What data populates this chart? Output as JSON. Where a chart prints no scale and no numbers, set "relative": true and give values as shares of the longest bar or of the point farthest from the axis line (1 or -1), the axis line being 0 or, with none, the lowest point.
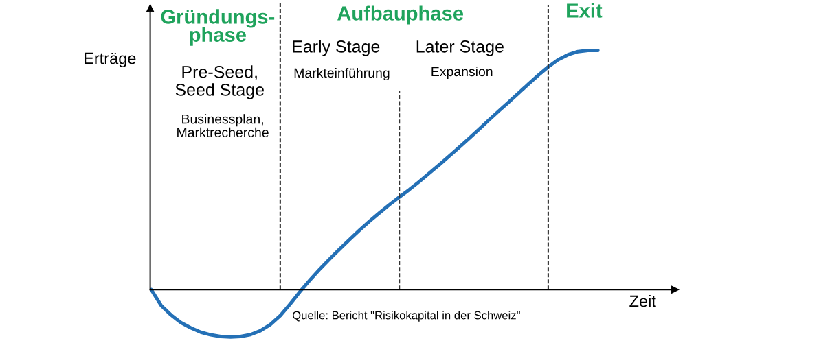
{
  "chart_data": {
    "type": "line",
    "relative": true,
    "xlabel": "Zeit",
    "ylabel": "Erträge",
    "annotations": [
      "Gründungs-\nphase",
      "Aufbauphase",
      "Exit",
      "Early Stage",
      "Later Stage",
      "Pre-Seed,\nSeed Stage",
      "Markteinführung",
      "Expansion",
      "Businessplan,\nMarktrecherche",
      "Quelle: Bericht \"Risikokapital in der Schweiz\""
    ],
    "categories": [
      null,
      null,
      null,
      null,
      null,
      null,
      null,
      null,
      null,
      null,
      null,
      null,
      null,
      null,
      null,
      null,
      null,
      null,
      null,
      null,
      null,
      null,
      null,
      null,
      null,
      null,
      null,
      null,
      null,
      null,
      null,
      null,
      null,
      null,
      null,
      null,
      null,
      null,
      null,
      null,
      null,
      null,
      null,
      null,
      null,
      null
    ],
    "series": [
      {
        "color": "#2470b6",
        "values": [
          0,
          -0.066,
          -0.106,
          -0.138,
          -0.16,
          -0.178,
          -0.189,
          -0.196,
          -0.198,
          -0.196,
          -0.188,
          -0.172,
          -0.146,
          -0.109,
          -0.06,
          -0.008,
          0.04,
          0.086,
          0.129,
          0.17,
          0.21,
          0.249,
          0.286,
          0.321,
          0.355,
          0.387,
          0.418,
          0.451,
          0.486,
          0.521,
          0.557,
          0.594,
          0.631,
          0.669,
          0.708,
          0.746,
          0.783,
          0.821,
          0.859,
          0.896,
          0.931,
          0.961,
          0.982,
          0.995,
          1,
          1
        ]
      }
    ]
  }
}
